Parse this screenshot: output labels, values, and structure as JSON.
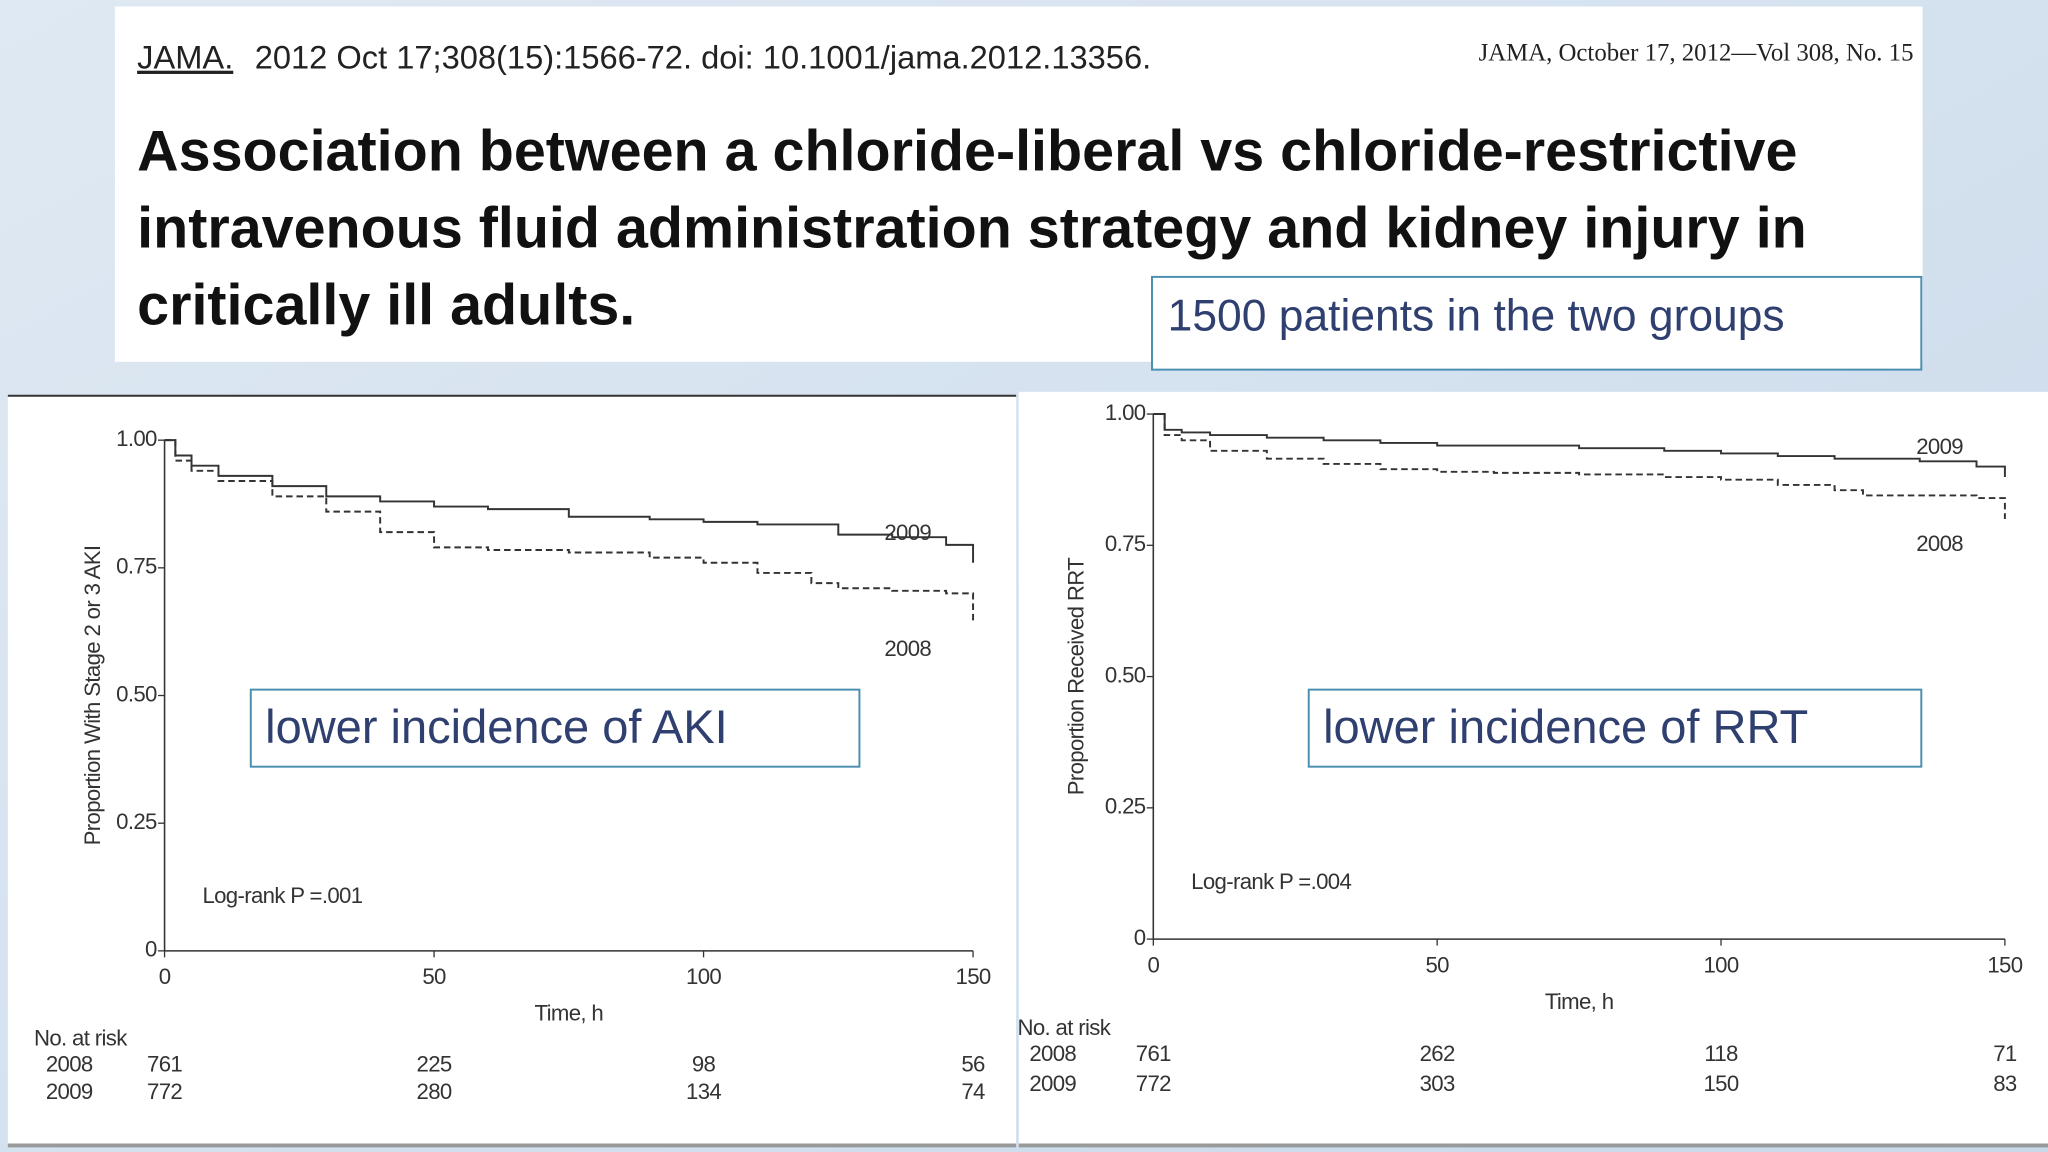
{
  "header": {
    "citation_source": "JAMA.",
    "citation": "2012 Oct 17;308(15):1566-72. doi: 10.1001/jama.2012.13356.",
    "citation_right": "JAMA, October 17, 2012—Vol 308, No. 15",
    "title_lines": [
      "Association between a chloride-liberal vs chloride-restrictive",
      "intravenous fluid administration strategy and kidney injury in",
      "critically ill adults."
    ],
    "callout": "1500 patients in the two groups"
  },
  "chart_data": [
    {
      "type": "step",
      "y_label": "Proportion With Stage 2 or 3 AKI",
      "x_label": "Time, h",
      "annotation": "Log-rank P =.001",
      "callout": "lower incidence of AKI",
      "risk_label": "No. at risk",
      "xlim": [
        0,
        150
      ],
      "xticks": [
        0,
        50,
        100,
        150
      ],
      "ylim": [
        0,
        1
      ],
      "yticks": [
        0,
        0.25,
        {
          "value": 0.5,
          "label": "0.50"
        },
        0.75,
        {
          "value": 1,
          "label": "1.00"
        }
      ],
      "x": [
        0,
        2,
        5,
        10,
        20,
        30,
        40,
        50,
        60,
        75,
        90,
        100,
        110,
        120,
        125,
        135,
        145,
        150
      ],
      "series": [
        {
          "name": "2008",
          "color": "#333333",
          "dashed": true,
          "values": [
            1.0,
            0.96,
            0.94,
            0.92,
            0.89,
            0.86,
            0.82,
            0.79,
            0.785,
            0.78,
            0.77,
            0.76,
            0.74,
            0.72,
            0.71,
            0.705,
            0.7,
            0.64
          ],
          "at_risk": [
            761,
            225,
            98,
            56
          ]
        },
        {
          "name": "2009",
          "color": "#333333",
          "dashed": false,
          "values": [
            1.0,
            0.97,
            0.95,
            0.93,
            0.91,
            0.89,
            0.88,
            0.87,
            0.865,
            0.85,
            0.845,
            0.84,
            0.835,
            0.835,
            0.815,
            0.81,
            0.795,
            0.76
          ],
          "at_risk": [
            772,
            280,
            134,
            74
          ]
        }
      ]
    },
    {
      "type": "step",
      "y_label": "Proportion Received RRT",
      "x_label": "Time, h",
      "annotation": "Log-rank P =.004",
      "callout": "lower incidence of RRT",
      "risk_label": "No. at risk",
      "xlim": [
        0,
        150
      ],
      "xticks": [
        0,
        50,
        100,
        150
      ],
      "ylim": [
        0,
        1
      ],
      "yticks": [
        0,
        0.25,
        {
          "value": 0.5,
          "label": "0.50"
        },
        0.75,
        {
          "value": 1,
          "label": "1.00"
        }
      ],
      "x": [
        0,
        2,
        5,
        10,
        20,
        30,
        40,
        50,
        60,
        75,
        90,
        100,
        110,
        120,
        125,
        135,
        145,
        150
      ],
      "series": [
        {
          "name": "2008",
          "color": "#333333",
          "dashed": true,
          "values": [
            1.0,
            0.96,
            0.95,
            0.93,
            0.915,
            0.905,
            0.895,
            0.89,
            0.888,
            0.885,
            0.88,
            0.875,
            0.865,
            0.855,
            0.845,
            0.845,
            0.84,
            0.8
          ],
          "at_risk": [
            761,
            262,
            118,
            71
          ]
        },
        {
          "name": "2009",
          "color": "#333333",
          "dashed": false,
          "values": [
            1.0,
            0.97,
            0.965,
            0.96,
            0.955,
            0.95,
            0.945,
            0.94,
            0.94,
            0.935,
            0.93,
            0.925,
            0.92,
            0.915,
            0.915,
            0.91,
            0.9,
            0.88
          ],
          "at_risk": [
            772,
            303,
            150,
            83
          ]
        }
      ]
    }
  ]
}
